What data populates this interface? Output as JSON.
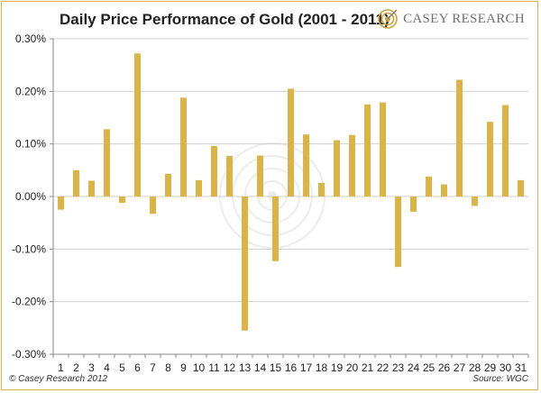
{
  "header": {
    "title": "Daily Price Performance of Gold (2001 - 2011)",
    "brand": "CASEY RESEARCH"
  },
  "footer": {
    "copyright": "© Casey Research 2012",
    "source": "Source: WGC"
  },
  "colors": {
    "bar": "#dbb445",
    "frame": "#d9b24a",
    "grid": "#cfcfcf"
  },
  "chart_data": {
    "type": "bar",
    "title": "Daily Price Performance of Gold (2001 - 2011)",
    "xlabel": "",
    "ylabel": "",
    "ylim": [
      -0.3,
      0.3
    ],
    "yticks": [
      0.3,
      0.2,
      0.1,
      0.0,
      -0.1,
      -0.2,
      -0.3
    ],
    "ytick_labels": [
      "0.30%",
      "0.20%",
      "0.10%",
      "0.00%",
      "-0.10%",
      "-0.20%",
      "-0.30%"
    ],
    "grid": true,
    "categories": [
      "1",
      "2",
      "3",
      "4",
      "5",
      "6",
      "7",
      "8",
      "9",
      "10",
      "11",
      "12",
      "13",
      "14",
      "15",
      "16",
      "17",
      "18",
      "19",
      "20",
      "21",
      "22",
      "23",
      "24",
      "25",
      "26",
      "27",
      "28",
      "29",
      "30",
      "31"
    ],
    "values": [
      -0.025,
      0.05,
      0.03,
      0.128,
      -0.012,
      0.272,
      -0.033,
      0.043,
      0.188,
      0.031,
      0.096,
      0.077,
      -0.255,
      0.078,
      -0.123,
      0.205,
      0.118,
      0.026,
      0.107,
      0.117,
      0.175,
      0.179,
      -0.134,
      -0.029,
      0.038,
      0.023,
      0.222,
      -0.018,
      0.142,
      0.174,
      0.031
    ]
  }
}
